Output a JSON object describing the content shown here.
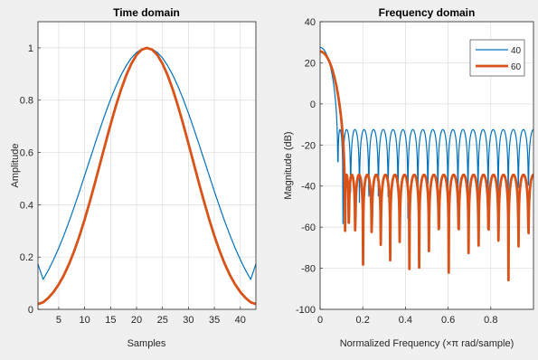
{
  "chart_data": [
    {
      "type": "line",
      "title": "Time domain",
      "xlabel": "Samples",
      "ylabel": "Amplitude",
      "xlim": [
        1,
        43
      ],
      "ylim": [
        0,
        1.1
      ],
      "xticks": [
        5,
        10,
        15,
        20,
        25,
        30,
        35,
        40
      ],
      "yticks": [
        0,
        0.2,
        0.4,
        0.6,
        0.8,
        1
      ],
      "grid": true,
      "window_length": 43,
      "series": [
        {
          "key": "a",
          "color": "#0072BD",
          "width": 1.2,
          "sidelobe_dB": -40,
          "endpoint": 0.115
        },
        {
          "key": "b",
          "color": "#D95319",
          "width": 2.8,
          "sidelobe_dB": -60,
          "endpoint": 0.015
        }
      ]
    },
    {
      "type": "line",
      "title": "Frequency domain",
      "xlabel": "Normalized Frequency  (×π rad/sample)",
      "ylabel": "Magnitude (dB)",
      "xlim": [
        0,
        1
      ],
      "ylim": [
        -100,
        40
      ],
      "xticks": [
        0,
        0.2,
        0.4,
        0.6,
        0.8
      ],
      "yticks": [
        -100,
        -80,
        -60,
        -40,
        -20,
        0,
        20,
        40
      ],
      "grid": true,
      "legend_position": "top-right",
      "series": [
        {
          "name": "40",
          "key": "a",
          "color": "#0072BD",
          "width": 1.2,
          "peak_dB": 27.5,
          "sidelobe_dB": -12.5
        },
        {
          "name": "60",
          "key": "b",
          "color": "#D95319",
          "width": 2.8,
          "peak_dB": 25.5,
          "sidelobe_dB": -34.5
        }
      ]
    }
  ]
}
